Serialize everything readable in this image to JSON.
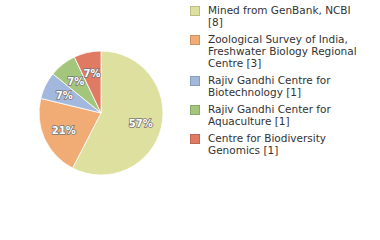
{
  "chart_data": {
    "type": "pie",
    "categories": [
      "Mined from GenBank, NCBI [8]",
      "Zoological Survey of India, Freshwater Biology Regional Centre [3]",
      "Rajiv Gandhi Centre for Biotechnology [1]",
      "Rajiv Gandhi Center for Aquaculture [1]",
      "Centre for Biodiversity Genomics [1]"
    ],
    "values": [
      57,
      21,
      7,
      7,
      7
    ],
    "value_labels": [
      "57%",
      "21%",
      "7%",
      "7%",
      "7%"
    ],
    "colors": [
      "#dde09e",
      "#f0ac74",
      "#a3b8dd",
      "#a3c67c",
      "#e07a63"
    ],
    "data_labels": true,
    "legend": "right"
  }
}
